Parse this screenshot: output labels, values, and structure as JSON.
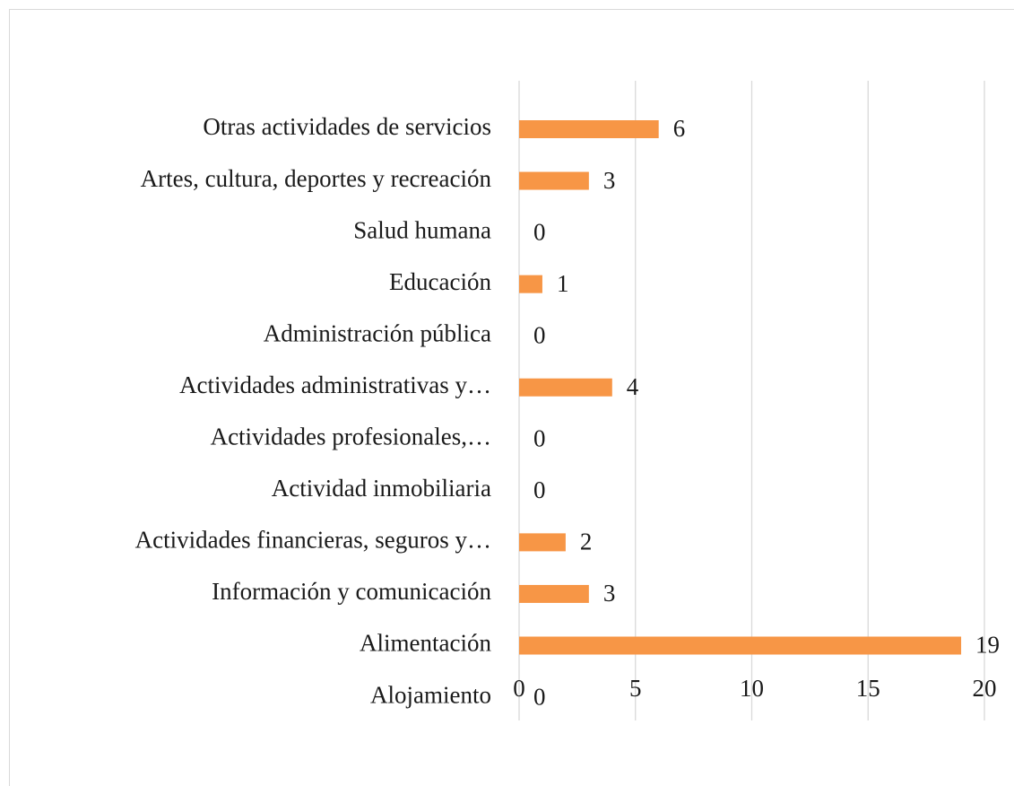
{
  "chart_data": {
    "type": "hbar",
    "categories": [
      "Otras actividades de servicios",
      "Artes, cultura, deportes y recreación",
      "Salud humana",
      "Educación",
      "Administración pública",
      "Actividades administrativas y…",
      "Actividades profesionales,…",
      "Actividad inmobiliaria",
      "Actividades financieras, seguros y…",
      "Información y comunicación",
      "Alimentación",
      "Alojamiento"
    ],
    "values": [
      6,
      3,
      0,
      1,
      0,
      4,
      0,
      0,
      2,
      3,
      19,
      0
    ],
    "color": "#f79646",
    "xlim": [
      0,
      20
    ],
    "xticks": [
      0,
      5,
      10,
      15,
      20
    ],
    "grid": true
  }
}
